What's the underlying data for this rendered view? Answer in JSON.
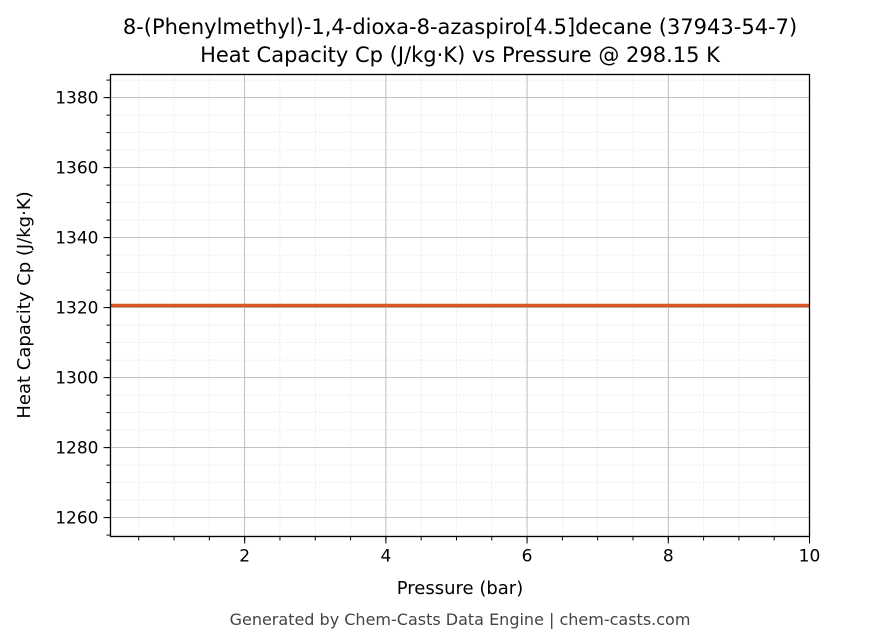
{
  "chart_data": {
    "type": "line",
    "title": "8-(Phenylmethyl)-1,4-dioxa-8-azaspiro[4.5]decane (37943-54-7)",
    "subtitle": "Heat Capacity Cp (J/kg·K) vs Pressure @ 298.15 K",
    "xlabel": "Pressure (bar)",
    "ylabel": "Heat Capacity Cp (J/kg·K)",
    "xlim": [
      0.1,
      10
    ],
    "ylim": [
      1254.6,
      1386.6
    ],
    "xticks": [
      2,
      4,
      6,
      8,
      10
    ],
    "yticks": [
      1260,
      1280,
      1300,
      1320,
      1340,
      1360,
      1380
    ],
    "grid": true,
    "series": [
      {
        "x": [
          0.1,
          10
        ],
        "y": [
          1320.6,
          1320.6
        ],
        "color": "#d95523"
      }
    ],
    "footer": "Generated by Chem-Casts Data Engine | chem-casts.com"
  }
}
